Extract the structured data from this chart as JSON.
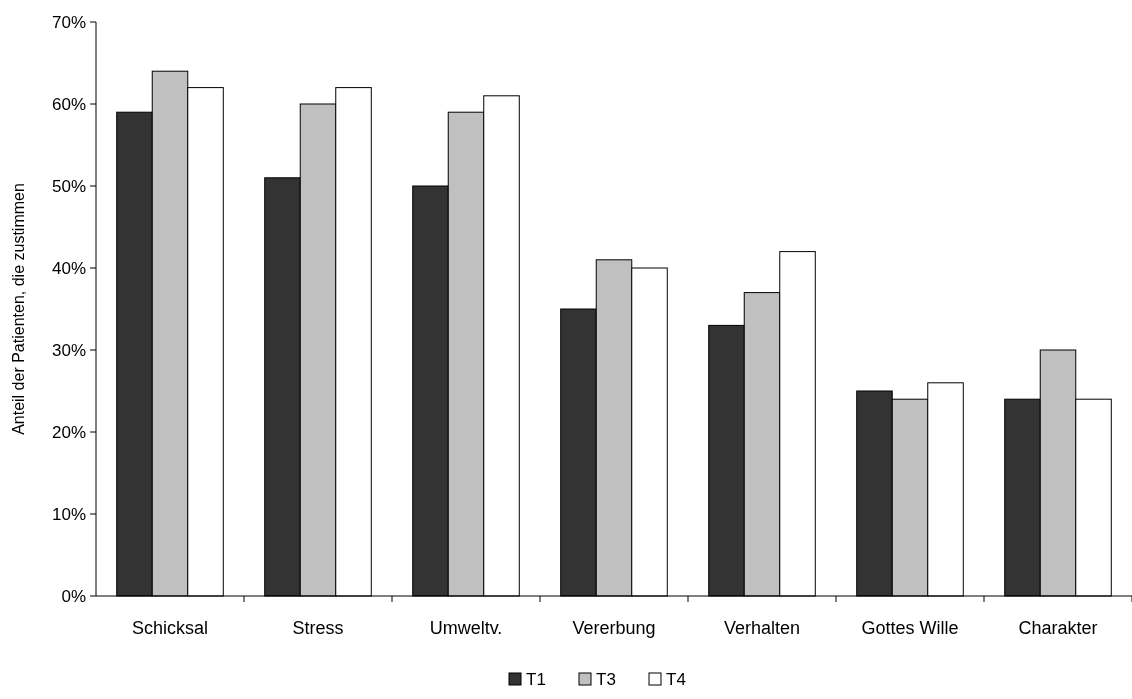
{
  "chart_data": {
    "type": "bar",
    "ylabel": "Anteil der Patienten, die zustimmen",
    "categories": [
      "Schicksal",
      "Stress",
      "Umweltv.",
      "Vererbung",
      "Verhalten",
      "Gottes Wille",
      "Charakter"
    ],
    "series": [
      {
        "name": "T1",
        "color": "#333333",
        "values": [
          59,
          51,
          50,
          35,
          33,
          25,
          24
        ]
      },
      {
        "name": "T3",
        "color": "#c0c0c0",
        "values": [
          64,
          60,
          59,
          41,
          37,
          24,
          30
        ]
      },
      {
        "name": "T4",
        "color": "#ffffff",
        "values": [
          62,
          62,
          61,
          40,
          42,
          26,
          24
        ]
      }
    ],
    "ylim": [
      0,
      70
    ],
    "yticks": [
      {
        "value": 0,
        "label": "0%"
      },
      {
        "value": 10,
        "label": "10%"
      },
      {
        "value": 20,
        "label": "20%"
      },
      {
        "value": 30,
        "label": "30%"
      },
      {
        "value": 40,
        "label": "40%"
      },
      {
        "value": 50,
        "label": "50%"
      },
      {
        "value": 60,
        "label": "60%"
      },
      {
        "value": 70,
        "label": "70%"
      }
    ],
    "grid": false,
    "legend": "bottom"
  }
}
